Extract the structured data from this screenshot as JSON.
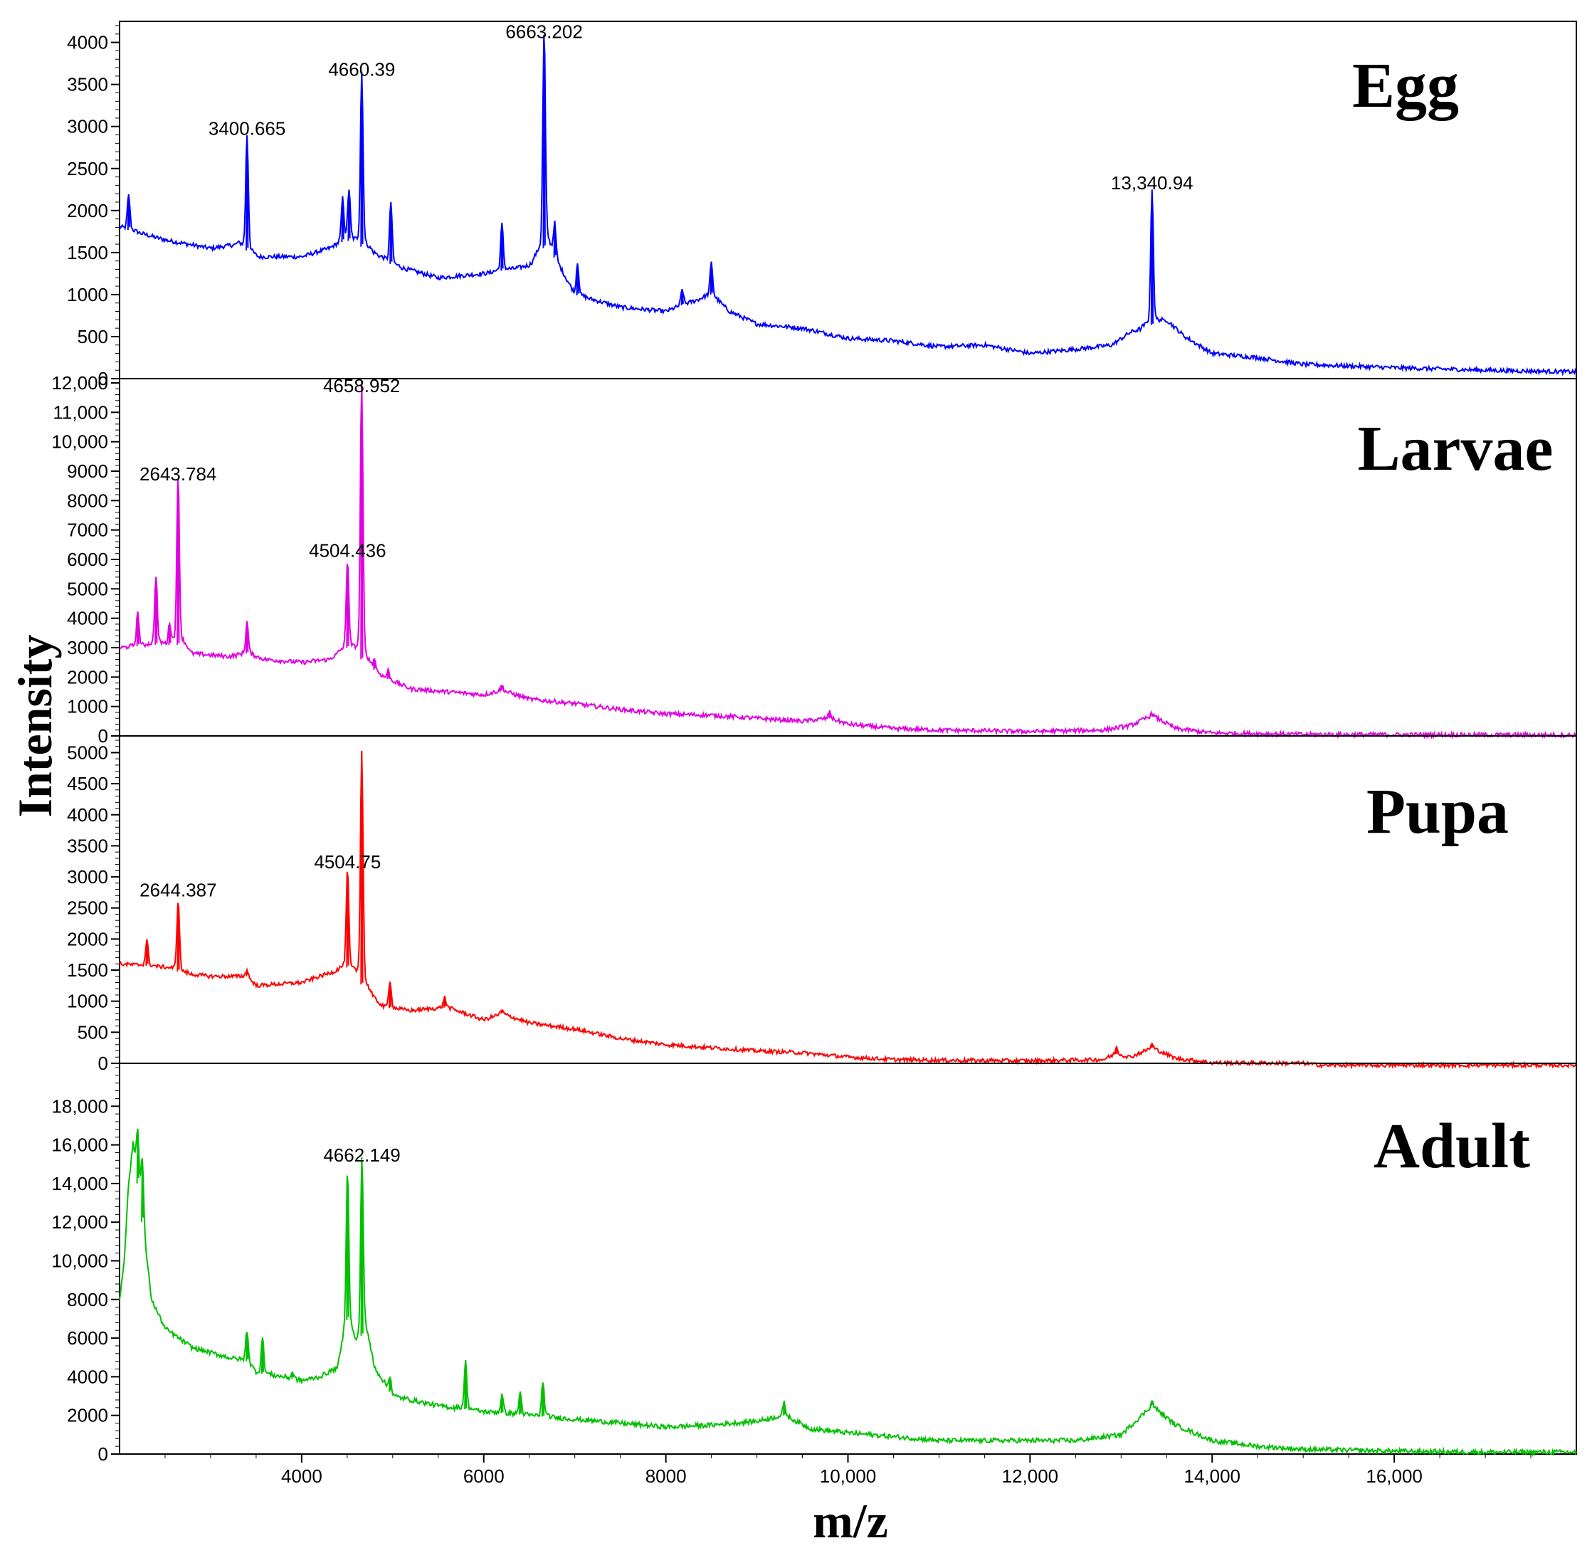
{
  "figure": {
    "xlabel": "m/z",
    "ylabel": "Intensity",
    "x_ticks": [
      "4000",
      "6000",
      "8000",
      "10,000",
      "12,000",
      "14,000",
      "16,000"
    ],
    "x_tick_values": [
      4000,
      6000,
      8000,
      10000,
      12000,
      14000,
      16000
    ]
  },
  "chart_data": [
    {
      "type": "line",
      "title": "Egg",
      "color": "#0000ff",
      "xlim": [
        2000,
        18000
      ],
      "ylim": [
        0,
        4200
      ],
      "y_ticks": [
        "0",
        "500",
        "1000",
        "1500",
        "2000",
        "2500",
        "3000",
        "3500",
        "4000"
      ],
      "y_tick_values": [
        0,
        500,
        1000,
        1500,
        2000,
        2500,
        3000,
        3500,
        4000
      ],
      "baseline": [
        [
          2000,
          1800
        ],
        [
          2500,
          1650
        ],
        [
          3000,
          1550
        ],
        [
          3300,
          1600
        ],
        [
          3500,
          1450
        ],
        [
          3800,
          1450
        ],
        [
          4000,
          1450
        ],
        [
          4300,
          1550
        ],
        [
          4500,
          1650
        ],
        [
          4800,
          1500
        ],
        [
          5000,
          1350
        ],
        [
          5500,
          1200
        ],
        [
          6000,
          1250
        ],
        [
          6300,
          1300
        ],
        [
          6500,
          1350
        ],
        [
          6700,
          1600
        ],
        [
          7000,
          1000
        ],
        [
          7500,
          850
        ],
        [
          8000,
          800
        ],
        [
          8500,
          1000
        ],
        [
          8700,
          800
        ],
        [
          9000,
          650
        ],
        [
          9500,
          600
        ],
        [
          10000,
          480
        ],
        [
          10500,
          450
        ],
        [
          11000,
          380
        ],
        [
          11500,
          400
        ],
        [
          12000,
          300
        ],
        [
          12500,
          350
        ],
        [
          12900,
          400
        ],
        [
          13100,
          550
        ],
        [
          13500,
          700
        ],
        [
          13700,
          500
        ],
        [
          14000,
          300
        ],
        [
          14500,
          250
        ],
        [
          15000,
          170
        ],
        [
          16000,
          130
        ],
        [
          17000,
          100
        ],
        [
          18000,
          80
        ]
      ],
      "peaks": [
        [
          2100,
          2150
        ],
        [
          3400,
          2800
        ],
        [
          4450,
          2100
        ],
        [
          4520,
          2200
        ],
        [
          4660,
          3500
        ],
        [
          4980,
          2050
        ],
        [
          6200,
          1800
        ],
        [
          6663,
          3950
        ],
        [
          6780,
          1800
        ],
        [
          7030,
          1350
        ],
        [
          8180,
          1050
        ],
        [
          8500,
          1350
        ],
        [
          13340,
          2150
        ]
      ],
      "labels": [
        {
          "x": 3400,
          "y": 2800,
          "text": "3400.665"
        },
        {
          "x": 4660,
          "y": 3500,
          "text": "4660.39"
        },
        {
          "x": 6663,
          "y": 3950,
          "text": "6663.202"
        },
        {
          "x": 13340,
          "y": 2150,
          "text": "13,340.94"
        }
      ]
    },
    {
      "type": "line",
      "title": "Larvae",
      "color": "#e000e0",
      "xlim": [
        2000,
        18000
      ],
      "ylim": [
        0,
        12000
      ],
      "y_ticks": [
        "0",
        "1000",
        "2000",
        "3000",
        "4000",
        "5000",
        "6000",
        "7000",
        "8000",
        "9000",
        "10,000",
        "11,000",
        "12,000"
      ],
      "y_tick_values": [
        0,
        1000,
        2000,
        3000,
        4000,
        5000,
        6000,
        7000,
        8000,
        9000,
        10000,
        11000,
        12000
      ],
      "baseline": [
        [
          2000,
          3000
        ],
        [
          2400,
          3100
        ],
        [
          2700,
          3100
        ],
        [
          2800,
          2800
        ],
        [
          3200,
          2700
        ],
        [
          3400,
          2800
        ],
        [
          3600,
          2600
        ],
        [
          4000,
          2500
        ],
        [
          4300,
          2600
        ],
        [
          4500,
          3000
        ],
        [
          4700,
          2500
        ],
        [
          4900,
          2000
        ],
        [
          5200,
          1600
        ],
        [
          5600,
          1500
        ],
        [
          6000,
          1400
        ],
        [
          6200,
          1550
        ],
        [
          6500,
          1250
        ],
        [
          7000,
          1100
        ],
        [
          7500,
          900
        ],
        [
          8000,
          750
        ],
        [
          8500,
          700
        ],
        [
          9000,
          600
        ],
        [
          9500,
          500
        ],
        [
          9800,
          600
        ],
        [
          10000,
          400
        ],
        [
          10500,
          250
        ],
        [
          11000,
          200
        ],
        [
          12000,
          150
        ],
        [
          12800,
          200
        ],
        [
          13100,
          350
        ],
        [
          13340,
          700
        ],
        [
          13600,
          250
        ],
        [
          14000,
          100
        ],
        [
          15000,
          50
        ],
        [
          18000,
          30
        ]
      ],
      "peaks": [
        [
          2200,
          4100
        ],
        [
          2400,
          5300
        ],
        [
          2550,
          3700
        ],
        [
          2643,
          8400
        ],
        [
          3400,
          3800
        ],
        [
          4504,
          5800
        ],
        [
          4659,
          11400
        ],
        [
          4800,
          2600
        ],
        [
          4950,
          2200
        ],
        [
          6200,
          1700
        ],
        [
          9800,
          800
        ],
        [
          13340,
          750
        ]
      ],
      "labels": [
        {
          "x": 2643,
          "y": 8400,
          "text": "2643.784"
        },
        {
          "x": 4504,
          "y": 5800,
          "text": "4504.436"
        },
        {
          "x": 4659,
          "y": 11400,
          "text": "4658.952"
        }
      ]
    },
    {
      "type": "line",
      "title": "Pupa",
      "color": "#ff0000",
      "xlim": [
        2000,
        18000
      ],
      "ylim": [
        0,
        5200
      ],
      "y_ticks": [
        "0",
        "500",
        "1000",
        "1500",
        "2000",
        "2500",
        "3000",
        "3500",
        "4000",
        "4500",
        "5000"
      ],
      "y_tick_values": [
        0,
        500,
        1000,
        1500,
        2000,
        2500,
        3000,
        3500,
        4000,
        4500,
        5000
      ],
      "baseline": [
        [
          2000,
          1600
        ],
        [
          2500,
          1550
        ],
        [
          2700,
          1450
        ],
        [
          3000,
          1400
        ],
        [
          3400,
          1400
        ],
        [
          3500,
          1250
        ],
        [
          4000,
          1300
        ],
        [
          4300,
          1450
        ],
        [
          4500,
          1550
        ],
        [
          4700,
          1200
        ],
        [
          4900,
          900
        ],
        [
          5200,
          850
        ],
        [
          5600,
          900
        ],
        [
          6000,
          700
        ],
        [
          6200,
          800
        ],
        [
          6500,
          650
        ],
        [
          7000,
          550
        ],
        [
          7500,
          400
        ],
        [
          8000,
          300
        ],
        [
          8500,
          250
        ],
        [
          9000,
          200
        ],
        [
          9500,
          170
        ],
        [
          10000,
          100
        ],
        [
          10500,
          60
        ],
        [
          11000,
          50
        ],
        [
          12000,
          40
        ],
        [
          12800,
          60
        ],
        [
          12950,
          150
        ],
        [
          13100,
          100
        ],
        [
          13340,
          250
        ],
        [
          13600,
          80
        ],
        [
          14000,
          10
        ],
        [
          15000,
          0
        ],
        [
          15200,
          -30
        ],
        [
          18000,
          -30
        ]
      ],
      "peaks": [
        [
          2300,
          1950
        ],
        [
          2644,
          2550
        ],
        [
          3400,
          1500
        ],
        [
          4504,
          3000
        ],
        [
          4660,
          4750
        ],
        [
          4970,
          1300
        ],
        [
          5570,
          1050
        ],
        [
          6200,
          850
        ],
        [
          12950,
          250
        ],
        [
          13340,
          300
        ]
      ],
      "labels": [
        {
          "x": 2644,
          "y": 2550,
          "text": "2644.387"
        },
        {
          "x": 4504,
          "y": 3000,
          "text": "4504.75"
        }
      ]
    },
    {
      "type": "line",
      "title": "Adult",
      "color": "#00c000",
      "xlim": [
        2000,
        18000
      ],
      "ylim": [
        0,
        20000
      ],
      "y_ticks": [
        "0",
        "2000",
        "4000",
        "6000",
        "8000",
        "10,000",
        "12,000",
        "14,000",
        "16,000",
        "18,000"
      ],
      "y_tick_values": [
        0,
        2000,
        4000,
        6000,
        8000,
        10000,
        12000,
        14000,
        16000,
        18000
      ],
      "baseline": [
        [
          2000,
          8000
        ],
        [
          2050,
          10000
        ],
        [
          2100,
          14000
        ],
        [
          2150,
          16000
        ],
        [
          2250,
          12000
        ],
        [
          2350,
          8000
        ],
        [
          2500,
          6500
        ],
        [
          2800,
          5500
        ],
        [
          3200,
          5000
        ],
        [
          3400,
          4800
        ],
        [
          3500,
          4200
        ],
        [
          3800,
          4000
        ],
        [
          4000,
          3800
        ],
        [
          4200,
          4000
        ],
        [
          4400,
          4500
        ],
        [
          4500,
          7000
        ],
        [
          4600,
          5500
        ],
        [
          4700,
          6500
        ],
        [
          4800,
          4500
        ],
        [
          5000,
          3000
        ],
        [
          5500,
          2500
        ],
        [
          6000,
          2200
        ],
        [
          6500,
          2000
        ],
        [
          7000,
          1800
        ],
        [
          7500,
          1600
        ],
        [
          8000,
          1400
        ],
        [
          8500,
          1500
        ],
        [
          9000,
          1700
        ],
        [
          9300,
          2000
        ],
        [
          9600,
          1300
        ],
        [
          10000,
          1100
        ],
        [
          10500,
          900
        ],
        [
          11000,
          700
        ],
        [
          12000,
          700
        ],
        [
          12500,
          700
        ],
        [
          13000,
          1000
        ],
        [
          13340,
          2500
        ],
        [
          13600,
          1500
        ],
        [
          14000,
          700
        ],
        [
          14500,
          400
        ],
        [
          15000,
          250
        ],
        [
          16000,
          150
        ],
        [
          17000,
          100
        ],
        [
          18000,
          100
        ]
      ],
      "peaks": [
        [
          2200,
          16500
        ],
        [
          2250,
          15000
        ],
        [
          3400,
          6300
        ],
        [
          3570,
          5900
        ],
        [
          3900,
          4200
        ],
        [
          4504,
          14200
        ],
        [
          4662,
          14700
        ],
        [
          4970,
          4000
        ],
        [
          5800,
          4600
        ],
        [
          6200,
          3000
        ],
        [
          6400,
          3100
        ],
        [
          6650,
          3600
        ],
        [
          9300,
          2600
        ],
        [
          13340,
          2700
        ]
      ],
      "labels": [
        {
          "x": 4662,
          "y": 14700,
          "text": "4662.149"
        }
      ]
    }
  ]
}
